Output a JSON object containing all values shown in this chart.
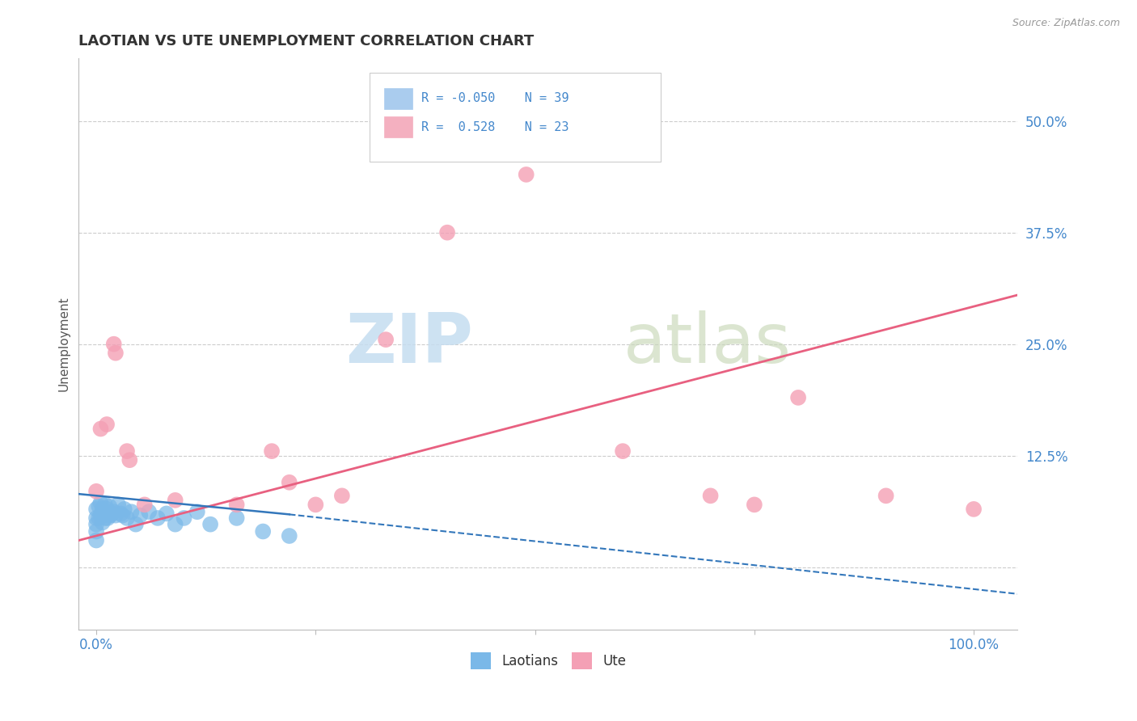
{
  "title": "LAOTIAN VS UTE UNEMPLOYMENT CORRELATION CHART",
  "source": "Source: ZipAtlas.com",
  "ylabel": "Unemployment",
  "y_tick_labels_right": [
    "50.0%",
    "37.5%",
    "25.0%",
    "12.5%",
    ""
  ],
  "y_tick_values": [
    0.5,
    0.375,
    0.25,
    0.125,
    0.0
  ],
  "xlim": [
    -0.02,
    1.05
  ],
  "ylim": [
    -0.07,
    0.57
  ],
  "laotian_color": "#7ab8e8",
  "ute_color": "#f4a0b5",
  "laotian_line_color": "#3377bb",
  "ute_line_color": "#e86080",
  "background_color": "#ffffff",
  "grid_color": "#cccccc",
  "laotian_x": [
    0.0,
    0.0,
    0.0,
    0.0,
    0.0,
    0.003,
    0.003,
    0.005,
    0.005,
    0.007,
    0.007,
    0.008,
    0.01,
    0.01,
    0.012,
    0.013,
    0.015,
    0.016,
    0.018,
    0.02,
    0.022,
    0.025,
    0.028,
    0.03,
    0.032,
    0.035,
    0.04,
    0.045,
    0.05,
    0.06,
    0.07,
    0.08,
    0.09,
    0.1,
    0.115,
    0.13,
    0.16,
    0.19,
    0.22
  ],
  "laotian_y": [
    0.065,
    0.055,
    0.048,
    0.04,
    0.03,
    0.068,
    0.055,
    0.072,
    0.058,
    0.065,
    0.05,
    0.058,
    0.07,
    0.055,
    0.065,
    0.055,
    0.068,
    0.058,
    0.06,
    0.062,
    0.058,
    0.07,
    0.06,
    0.058,
    0.065,
    0.055,
    0.062,
    0.048,
    0.058,
    0.062,
    0.055,
    0.06,
    0.048,
    0.055,
    0.062,
    0.048,
    0.055,
    0.04,
    0.035
  ],
  "ute_x": [
    0.0,
    0.005,
    0.012,
    0.02,
    0.022,
    0.035,
    0.038,
    0.055,
    0.09,
    0.16,
    0.2,
    0.22,
    0.25,
    0.28,
    0.33,
    0.4,
    0.49,
    0.6,
    0.7,
    0.75,
    0.8,
    0.9,
    1.0
  ],
  "ute_y": [
    0.085,
    0.155,
    0.16,
    0.25,
    0.24,
    0.13,
    0.12,
    0.07,
    0.075,
    0.07,
    0.13,
    0.095,
    0.07,
    0.08,
    0.255,
    0.375,
    0.44,
    0.13,
    0.08,
    0.07,
    0.19,
    0.08,
    0.065
  ],
  "ute_line_start_y": 0.03,
  "ute_line_end_y": 0.305,
  "lao_line_start_y": 0.082,
  "lao_line_end_y": -0.02,
  "lao_line_dashed_end_y": -0.03
}
